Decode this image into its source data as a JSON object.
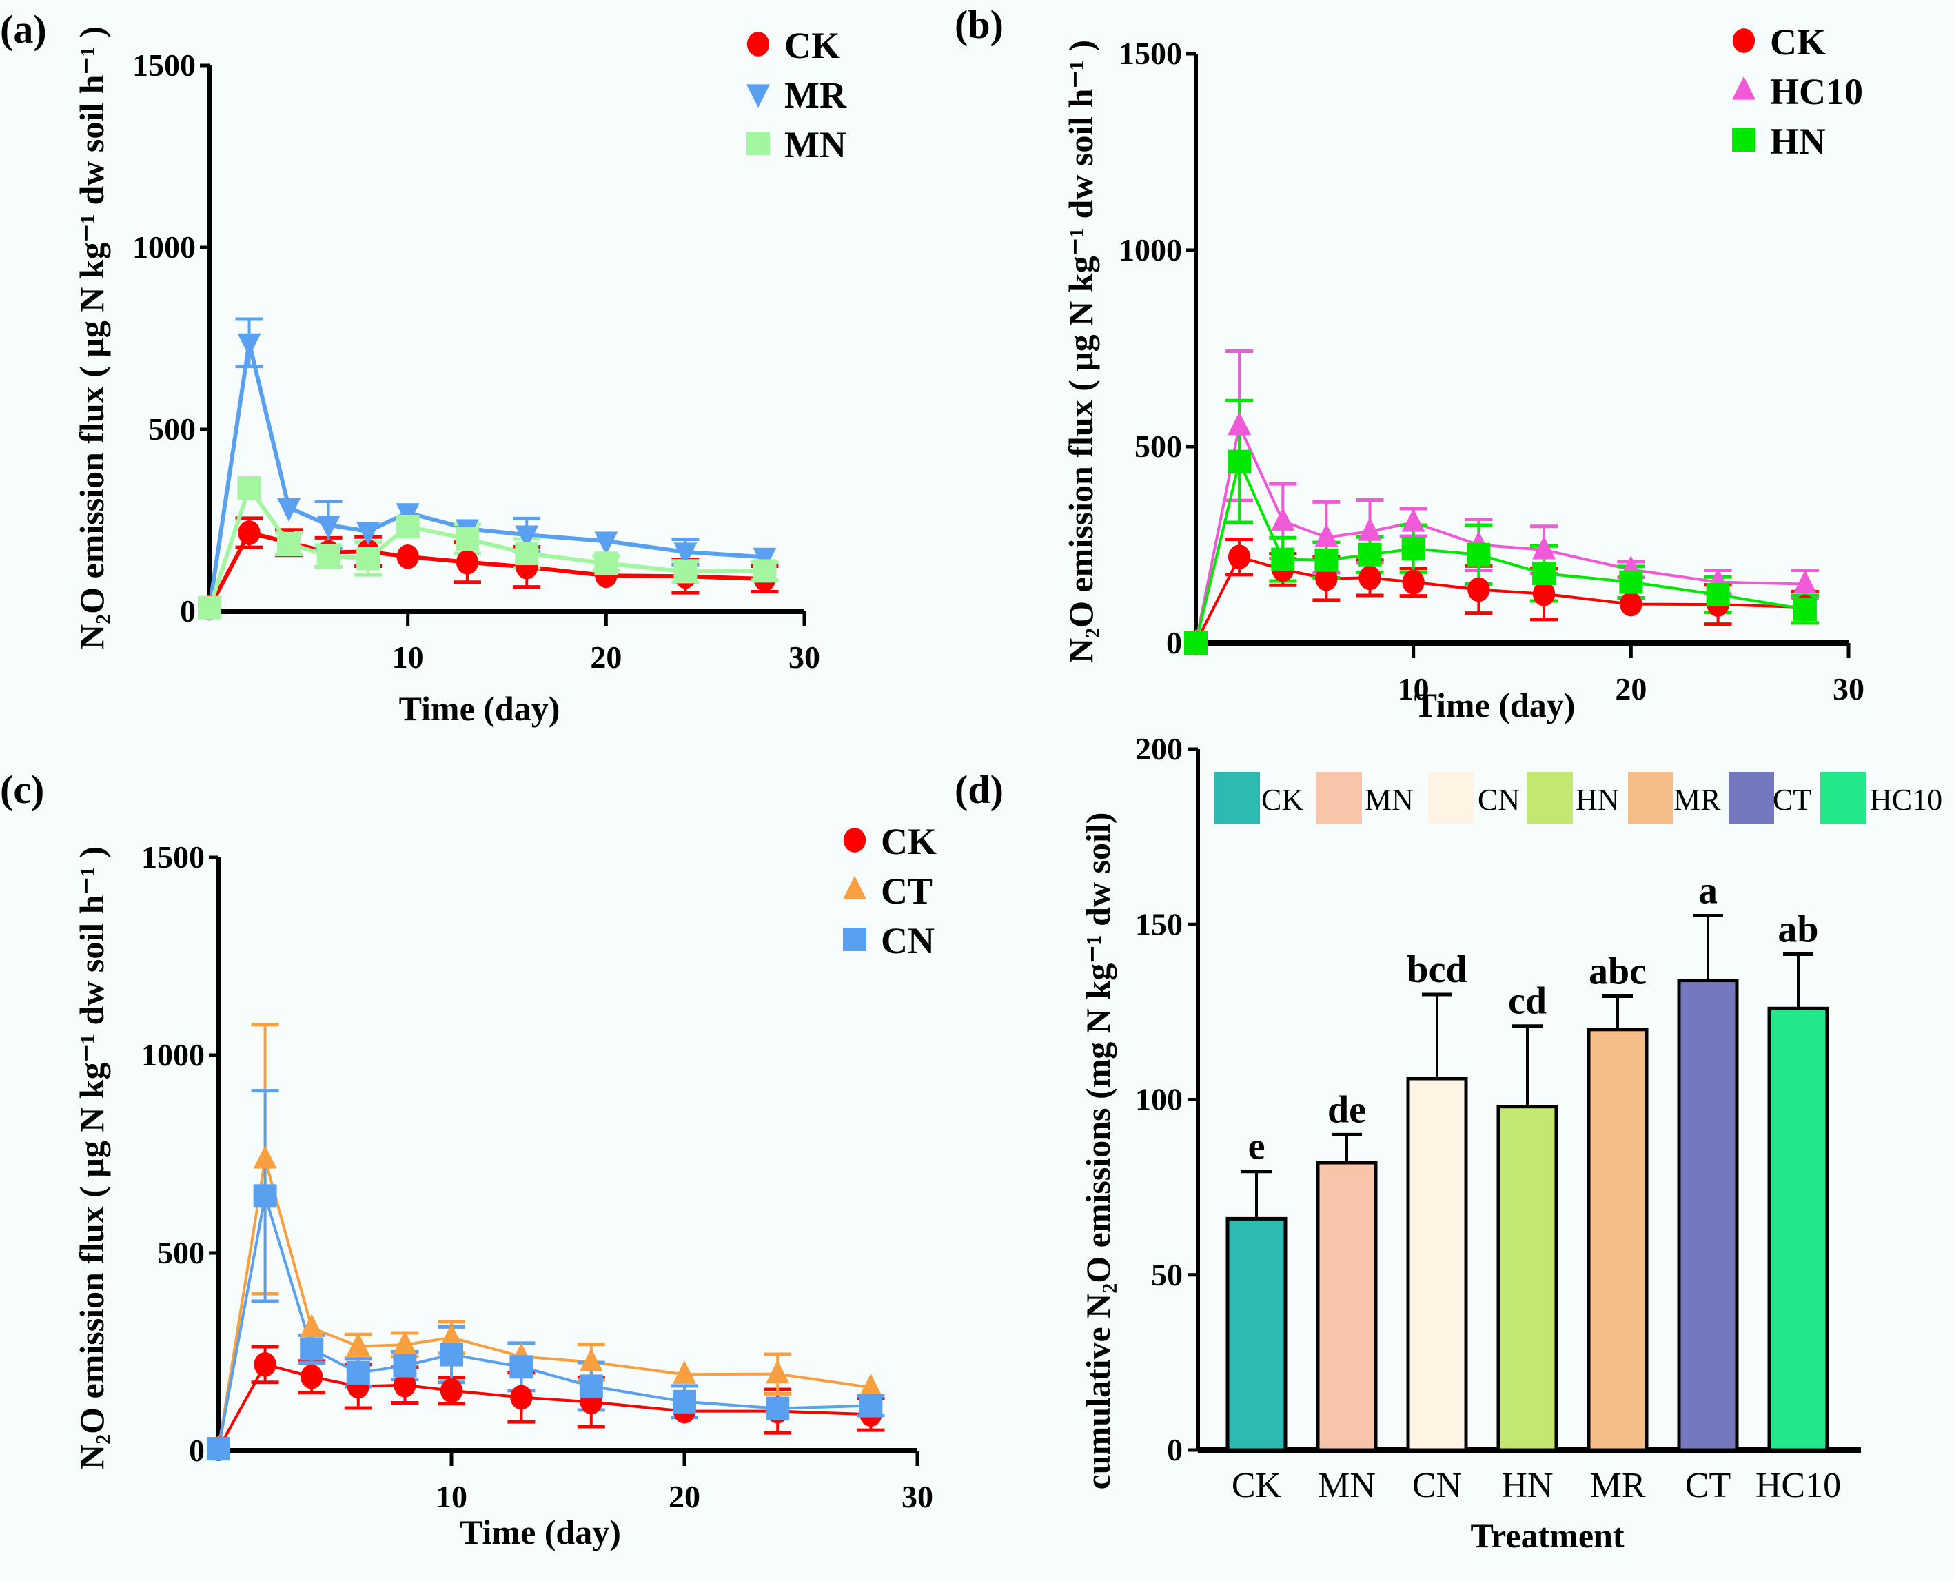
{
  "figure": {
    "panels": [
      "(a)",
      "(b)",
      "(c)",
      "(d)"
    ]
  },
  "chart_data": [
    {
      "id": "a",
      "type": "line",
      "panel_label": "(a)",
      "title": "",
      "xlabel": "Time (day)",
      "ylabel": "N₂O emission flux ( μg N kg⁻¹ dw soil h⁻¹ )",
      "xlim": [
        0,
        30
      ],
      "ylim": [
        0,
        1500
      ],
      "xticks": [
        10,
        20,
        30
      ],
      "yticks": [
        0,
        500,
        1000,
        1500
      ],
      "grid": false,
      "legend_position": "top-right",
      "x": [
        0,
        2,
        4,
        6,
        8,
        10,
        13,
        16,
        20,
        24,
        28
      ],
      "series": [
        {
          "name": "CK",
          "color": "#ff0000",
          "marker": "circle",
          "values": [
            10,
            216,
            189,
            162,
            164,
            150,
            135,
            122,
            98,
            96,
            89
          ],
          "err": [
            0,
            40,
            35,
            40,
            40,
            0,
            55,
            55,
            0,
            45,
            35
          ]
        },
        {
          "name": "MR",
          "color": "#5aa0f0",
          "marker": "triangle-down",
          "values": [
            10,
            738,
            285,
            237,
            220,
            271,
            227,
            210,
            193,
            163,
            149
          ],
          "err": [
            0,
            65,
            0,
            65,
            0,
            0,
            0,
            45,
            0,
            35,
            0
          ]
        },
        {
          "name": "MN",
          "color": "#a4f5a0",
          "marker": "square",
          "values": [
            10,
            339,
            186,
            152,
            145,
            233,
            199,
            159,
            132,
            109,
            111
          ],
          "err": [
            0,
            0,
            30,
            30,
            45,
            0,
            40,
            40,
            20,
            30,
            25
          ]
        }
      ]
    },
    {
      "id": "b",
      "type": "line",
      "panel_label": "(b)",
      "title": "",
      "xlabel": "Time (day)",
      "ylabel": "N₂O emission flux ( μg N kg⁻¹ dw soil h⁻¹ )",
      "xlim": [
        0,
        30
      ],
      "ylim": [
        0,
        1500
      ],
      "xticks": [
        10,
        20,
        30
      ],
      "yticks": [
        0,
        500,
        1000,
        1500
      ],
      "grid": false,
      "legend_position": "top-right",
      "x": [
        0,
        2,
        4,
        6,
        8,
        10,
        13,
        16,
        20,
        24,
        28
      ],
      "series": [
        {
          "name": "CK",
          "color": "#ff0000",
          "marker": "circle",
          "values": [
            0,
            219,
            187,
            164,
            166,
            155,
            136,
            125,
            99,
            98,
            91
          ],
          "err": [
            0,
            45,
            40,
            55,
            45,
            35,
            60,
            65,
            0,
            50,
            40
          ]
        },
        {
          "name": "HC10",
          "color": "#f05ad8",
          "marker": "triangle-up",
          "values": [
            0,
            553,
            310,
            269,
            284,
            307,
            250,
            237,
            187,
            155,
            150
          ],
          "err": [
            0,
            190,
            95,
            90,
            80,
            35,
            65,
            60,
            20,
            30,
            35
          ]
        },
        {
          "name": "HN",
          "color": "#00e800",
          "marker": "square",
          "values": [
            0,
            462,
            213,
            211,
            225,
            240,
            225,
            177,
            155,
            123,
            86
          ],
          "err": [
            0,
            155,
            55,
            45,
            45,
            60,
            75,
            70,
            40,
            45,
            35
          ]
        }
      ]
    },
    {
      "id": "c",
      "type": "line",
      "panel_label": "(c)",
      "title": "",
      "xlabel": "Time (day)",
      "ylabel": "N₂O emission flux ( μg N kg⁻¹ dw soil h⁻¹ )",
      "xlim": [
        0,
        30
      ],
      "ylim": [
        0,
        1500
      ],
      "xticks": [
        10,
        20,
        30
      ],
      "yticks": [
        0,
        500,
        1000,
        1500
      ],
      "grid": false,
      "legend_position": "top-right",
      "x": [
        0,
        2,
        4,
        6,
        8,
        10,
        13,
        16,
        20,
        24,
        28
      ],
      "series": [
        {
          "name": "CK",
          "color": "#ff0000",
          "marker": "circle",
          "values": [
            5,
            218,
            187,
            163,
            166,
            152,
            135,
            123,
            100,
            100,
            92
          ],
          "err": [
            0,
            45,
            40,
            55,
            45,
            33,
            62,
            62,
            0,
            55,
            40
          ]
        },
        {
          "name": "CT",
          "color": "#f8a040",
          "marker": "triangle-up",
          "values": [
            5,
            737,
            311,
            264,
            268,
            286,
            238,
            224,
            193,
            194,
            160
          ],
          "err": [
            0,
            340,
            0,
            30,
            30,
            40,
            0,
            45,
            0,
            50,
            0
          ]
        },
        {
          "name": "CN",
          "color": "#5aa0f0",
          "marker": "square",
          "values": [
            5,
            644,
            257,
            197,
            215,
            243,
            212,
            163,
            124,
            107,
            114
          ],
          "err": [
            0,
            266,
            35,
            35,
            35,
            70,
            60,
            60,
            40,
            0,
            25
          ]
        }
      ]
    },
    {
      "id": "d",
      "type": "bar",
      "panel_label": "(d)",
      "title": "",
      "xlabel": "Treatment",
      "ylabel": "cumulative N₂O emissions (mg N kg⁻¹ dw soil)",
      "ylim": [
        0,
        200
      ],
      "yticks": [
        0,
        50,
        100,
        150,
        200
      ],
      "grid": false,
      "legend_position": "top",
      "categories": [
        "CK",
        "MN",
        "CN",
        "HN",
        "MR",
        "CT",
        "HC10"
      ],
      "values": [
        66,
        82,
        106,
        98,
        120,
        134,
        126
      ],
      "err": [
        13.5,
        8,
        24,
        23,
        9.5,
        18.5,
        15.5
      ],
      "significance": [
        "e",
        "de",
        "bcd",
        "cd",
        "abc",
        "a",
        "ab"
      ],
      "colors": [
        "#2cbab2",
        "#f9c5a8",
        "#fff4e4",
        "#c2e872",
        "#f5be88",
        "#7479bf",
        "#22e88a"
      ]
    }
  ]
}
